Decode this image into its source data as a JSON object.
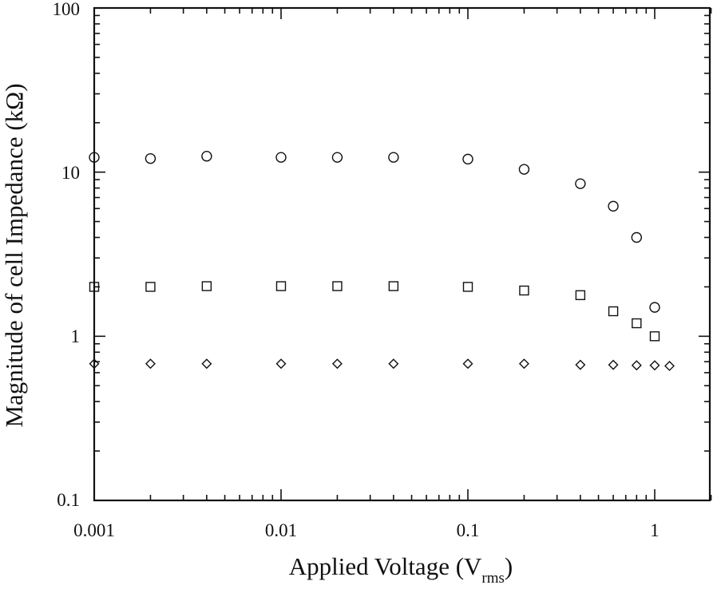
{
  "chart_data": {
    "type": "scatter",
    "xscale": "log",
    "yscale": "log",
    "xlim": [
      0.001,
      2
    ],
    "ylim": [
      0.1,
      100
    ],
    "xlabel": "Applied Voltage (V",
    "xlabel_sub": "rms",
    "xlabel_close": ")",
    "ylabel": "Magnitude of cell Impedance (kΩ)",
    "x_tick_labels": [
      "0.001",
      "0.01",
      "0.1",
      "1"
    ],
    "y_tick_labels": [
      "0.1",
      "1",
      "10",
      "100"
    ],
    "series": [
      {
        "marker": "circle",
        "points": [
          [
            0.001,
            12.3
          ],
          [
            0.002,
            12.1
          ],
          [
            0.004,
            12.5
          ],
          [
            0.01,
            12.3
          ],
          [
            0.02,
            12.3
          ],
          [
            0.04,
            12.3
          ],
          [
            0.1,
            12.0
          ],
          [
            0.2,
            10.4
          ],
          [
            0.4,
            8.5
          ],
          [
            0.6,
            6.2
          ],
          [
            0.8,
            4.0
          ],
          [
            1.0,
            1.5
          ]
        ]
      },
      {
        "marker": "square",
        "points": [
          [
            0.001,
            2.0
          ],
          [
            0.002,
            2.0
          ],
          [
            0.004,
            2.02
          ],
          [
            0.01,
            2.02
          ],
          [
            0.02,
            2.02
          ],
          [
            0.04,
            2.02
          ],
          [
            0.1,
            2.0
          ],
          [
            0.2,
            1.9
          ],
          [
            0.4,
            1.78
          ],
          [
            0.6,
            1.42
          ],
          [
            0.8,
            1.2
          ],
          [
            1.0,
            1.0
          ]
        ]
      },
      {
        "marker": "diamond",
        "points": [
          [
            0.001,
            0.68
          ],
          [
            0.002,
            0.68
          ],
          [
            0.004,
            0.68
          ],
          [
            0.01,
            0.68
          ],
          [
            0.02,
            0.68
          ],
          [
            0.04,
            0.68
          ],
          [
            0.1,
            0.68
          ],
          [
            0.2,
            0.68
          ],
          [
            0.4,
            0.67
          ],
          [
            0.6,
            0.67
          ],
          [
            0.8,
            0.665
          ],
          [
            1.0,
            0.665
          ],
          [
            1.2,
            0.66
          ]
        ]
      }
    ]
  }
}
